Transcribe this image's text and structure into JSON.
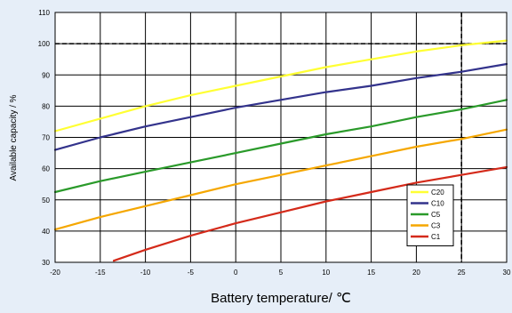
{
  "chart_data": {
    "type": "line",
    "xlabel": "Battery temperature/ ℃",
    "ylabel": "Available capacity / %",
    "xlim": [
      -20,
      30
    ],
    "ylim": [
      30,
      110
    ],
    "x_ticks": [
      -20,
      -15,
      -10,
      -5,
      0,
      5,
      10,
      15,
      20,
      25,
      30
    ],
    "y_ticks": [
      30,
      40,
      50,
      60,
      70,
      80,
      90,
      100,
      110
    ],
    "grid": true,
    "legend_position": "bottom-right",
    "reference_lines": [
      {
        "axis": "y",
        "value": 100,
        "style": "dashed"
      },
      {
        "axis": "x",
        "value": 25,
        "style": "dashed"
      }
    ],
    "series": [
      {
        "name": "C20",
        "color": "#ffff33",
        "x": [
          -20,
          -15,
          -10,
          -5,
          0,
          5,
          10,
          15,
          20,
          25,
          30
        ],
        "y": [
          72,
          76,
          80,
          83.5,
          86.5,
          89.5,
          92.5,
          95,
          97.5,
          99.5,
          101
        ]
      },
      {
        "name": "C10",
        "color": "#33338c",
        "x": [
          -20,
          -15,
          -10,
          -5,
          0,
          5,
          10,
          15,
          20,
          25,
          30
        ],
        "y": [
          66,
          70,
          73.5,
          76.5,
          79.5,
          82,
          84.5,
          86.5,
          89,
          91,
          93.5
        ]
      },
      {
        "name": "C5",
        "color": "#2a9a2a",
        "x": [
          -20,
          -15,
          -10,
          -5,
          0,
          5,
          10,
          15,
          20,
          25,
          30
        ],
        "y": [
          52.5,
          56,
          59,
          62,
          65,
          68,
          71,
          73.5,
          76.5,
          79,
          82
        ]
      },
      {
        "name": "C3",
        "color": "#f5a700",
        "x": [
          -20,
          -15,
          -10,
          -5,
          0,
          5,
          10,
          15,
          20,
          25,
          30
        ],
        "y": [
          40.5,
          44.5,
          48,
          51.5,
          55,
          58,
          61,
          64,
          67,
          69.5,
          72.5
        ]
      },
      {
        "name": "C1",
        "color": "#d42a1a",
        "x": [
          -13.5,
          -10,
          -5,
          0,
          5,
          10,
          15,
          20,
          25,
          30
        ],
        "y": [
          30.5,
          34,
          38.5,
          42.5,
          46,
          49.5,
          52.5,
          55.5,
          58,
          60.5
        ]
      }
    ]
  }
}
